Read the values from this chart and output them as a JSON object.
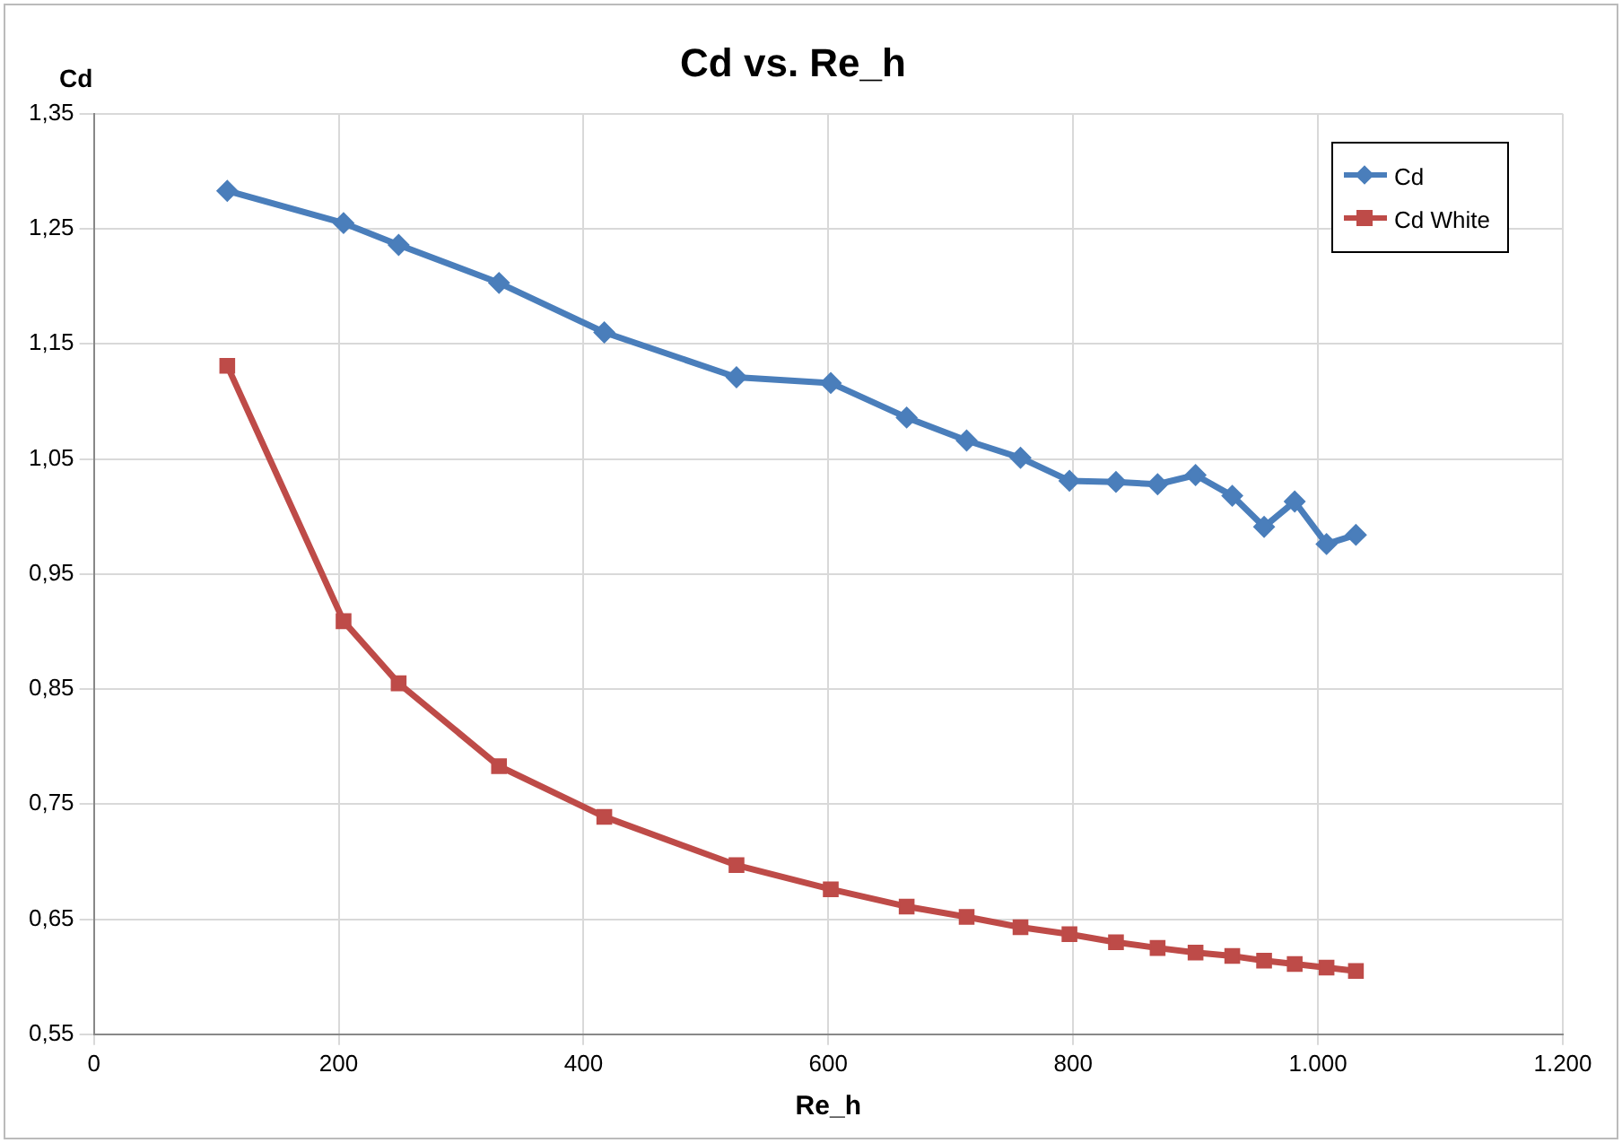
{
  "chart_data": {
    "type": "line",
    "title": "Cd vs. Re_h",
    "xlabel": "Re_h",
    "ylabel": "Cd",
    "xlim": [
      0,
      1200
    ],
    "xticks": [
      0,
      200,
      400,
      600,
      800,
      {
        "value": 1000,
        "label": "1.000"
      },
      {
        "value": 1200,
        "label": "1.200"
      }
    ],
    "ylim": [
      0.55,
      1.35
    ],
    "yticks": [
      {
        "value": 0.55,
        "label": "0,55"
      },
      {
        "value": 0.65,
        "label": "0,65"
      },
      {
        "value": 0.75,
        "label": "0,75"
      },
      {
        "value": 0.85,
        "label": "0,85"
      },
      {
        "value": 0.95,
        "label": "0,95"
      },
      {
        "value": 1.05,
        "label": "1,05"
      },
      {
        "value": 1.15,
        "label": "1,15"
      },
      {
        "value": 1.25,
        "label": "1,25"
      },
      {
        "value": 1.35,
        "label": "1,35"
      }
    ],
    "x": [
      109,
      204,
      249,
      331,
      417,
      525,
      602,
      664,
      713,
      757,
      797,
      835,
      869,
      900,
      930,
      956,
      981,
      1007,
      1031
    ],
    "series": [
      {
        "name": "Cd",
        "color": "#4a7ebb",
        "marker": "diamond",
        "values": [
          1.283,
          1.255,
          1.236,
          1.203,
          1.16,
          1.121,
          1.116,
          1.086,
          1.066,
          1.051,
          1.031,
          1.03,
          1.028,
          1.036,
          1.018,
          0.991,
          1.013,
          0.976,
          0.984
        ]
      },
      {
        "name": "Cd White",
        "color": "#be4b48",
        "marker": "square",
        "values": [
          1.131,
          0.909,
          0.855,
          0.783,
          0.739,
          0.697,
          0.676,
          0.661,
          0.652,
          0.643,
          0.637,
          0.63,
          0.625,
          0.621,
          0.618,
          0.614,
          0.611,
          0.608,
          0.605
        ]
      }
    ],
    "grid": true,
    "line_style": "solid",
    "legend": "top right"
  }
}
